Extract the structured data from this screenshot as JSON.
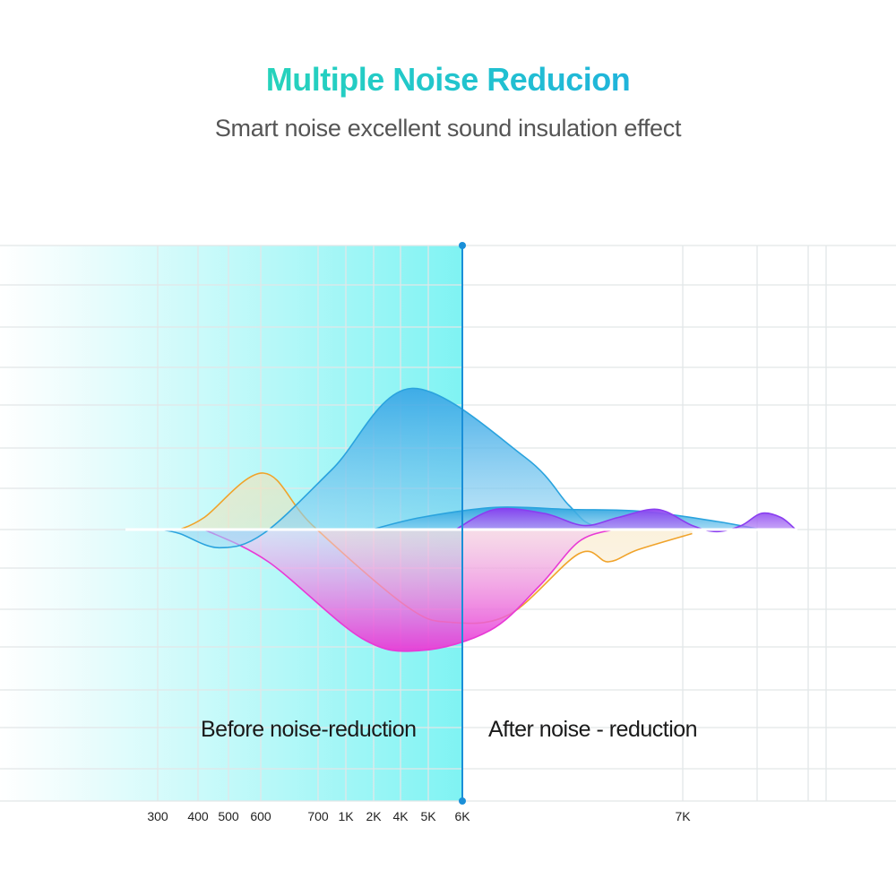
{
  "header": {
    "title": "Multiple Noise Reducion",
    "subtitle": "Smart noise excellent sound insulation effect"
  },
  "colors": {
    "title_gradient": [
      "#2fe6a0",
      "#22c9c9",
      "#1e9bf0"
    ],
    "divider": "#1a8fd8",
    "blue_curve": "#2aa3de",
    "orange_curve": "#f0a32a",
    "magenta_curve": "#e83ad6",
    "purple_curve": "#8a3ef0",
    "cyan_region": "#7ff3f3"
  },
  "chart_data": {
    "type": "area",
    "title": "Multiple Noise Reducion",
    "categories": [
      "300",
      "400",
      "500",
      "600",
      "700",
      "1K",
      "2K",
      "4K",
      "5K",
      "6K",
      "7K"
    ],
    "divider_at": "6K",
    "regions": [
      {
        "name": "before",
        "label": "Before noise-reduction"
      },
      {
        "name": "after",
        "label": "After noise - reduction"
      }
    ],
    "grid": true,
    "ylim": [
      -3,
      3.5
    ],
    "series": [
      {
        "name": "blue",
        "color": "#2aa3de",
        "points": [
          [
            0.7,
            0
          ],
          [
            1.1,
            -0.1
          ],
          [
            1.9,
            -0.45
          ],
          [
            2.8,
            -0.1
          ],
          [
            4.2,
            1.5
          ],
          [
            5.8,
            3.5
          ],
          [
            8.1,
            1.8
          ],
          [
            9.0,
            0.6
          ],
          [
            9.5,
            0.1
          ],
          [
            10.5,
            0
          ]
        ]
      },
      {
        "name": "orange",
        "color": "#f0a32a",
        "points": [
          [
            1.1,
            0
          ],
          [
            1.6,
            0.3
          ],
          [
            2.8,
            1.4
          ],
          [
            3.8,
            0.1
          ],
          [
            5.7,
            -1.9
          ],
          [
            6.6,
            -2.3
          ],
          [
            7.8,
            -2.1
          ],
          [
            9.2,
            -0.6
          ],
          [
            9.8,
            -0.8
          ],
          [
            10.4,
            -0.5
          ],
          [
            11.5,
            -0.1
          ]
        ]
      },
      {
        "name": "magenta",
        "color": "#e83ad6",
        "points": [
          [
            1.6,
            0
          ],
          [
            2.9,
            -0.8
          ],
          [
            4.8,
            -2.7
          ],
          [
            6.0,
            -3.0
          ],
          [
            7.4,
            -2.5
          ],
          [
            8.4,
            -1.4
          ],
          [
            9.2,
            -0.3
          ],
          [
            9.9,
            0
          ]
        ]
      },
      {
        "name": "purple",
        "color": "#8a3ef0",
        "points": [
          [
            6.7,
            0
          ],
          [
            7.5,
            0.5
          ],
          [
            8.5,
            0.4
          ],
          [
            9.3,
            0.1
          ],
          [
            10.0,
            0.3
          ],
          [
            10.8,
            0.5
          ],
          [
            11.5,
            0.1
          ],
          [
            12.0,
            -0.05
          ],
          [
            12.5,
            0.1
          ],
          [
            12.9,
            0.4
          ],
          [
            13.3,
            0.3
          ],
          [
            13.6,
            0
          ]
        ]
      },
      {
        "name": "teal-wide",
        "color": "#2aa3de",
        "points": [
          [
            5.0,
            0
          ],
          [
            6.0,
            0.3
          ],
          [
            7.5,
            0.55
          ],
          [
            9.0,
            0.5
          ],
          [
            10.5,
            0.45
          ],
          [
            12.0,
            0.2
          ],
          [
            12.9,
            0
          ]
        ]
      }
    ]
  }
}
